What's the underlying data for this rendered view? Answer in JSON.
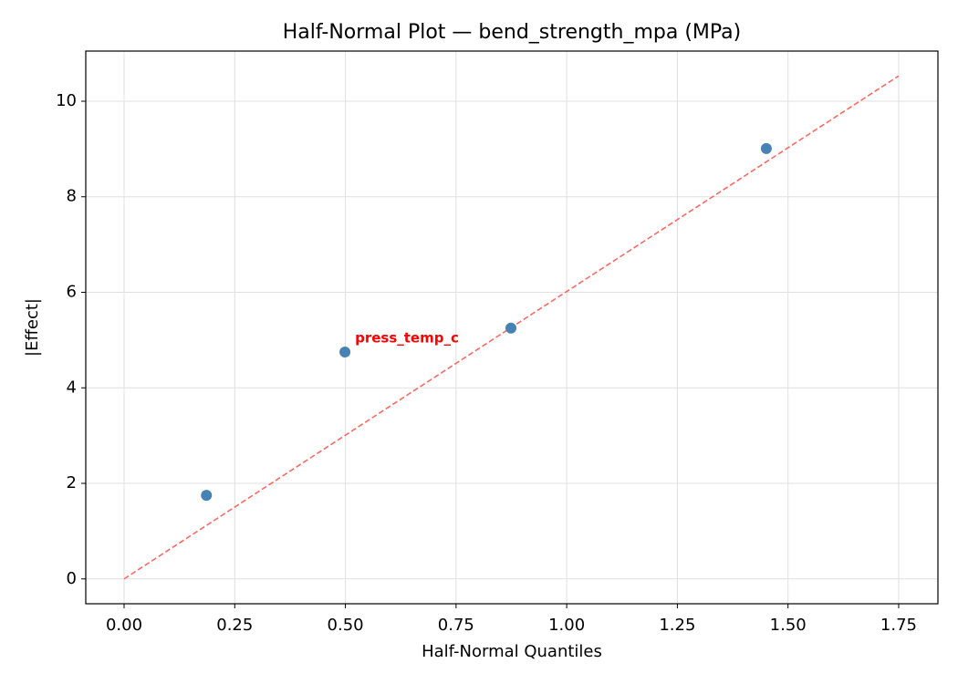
{
  "chart_data": {
    "type": "scatter",
    "title": "Half-Normal Plot — bend_strength_mpa (MPa)",
    "xlabel": "Half-Normal Quantiles",
    "ylabel": "|Effect|",
    "series": [
      {
        "color": "#4682b4",
        "x": [
          0.186,
          0.499,
          0.874,
          1.451
        ],
        "values": [
          1.75,
          4.75,
          5.25,
          9.01
        ]
      }
    ],
    "reference_line": {
      "x": [
        0,
        1.75
      ],
      "y": [
        0,
        10.53
      ],
      "color": "#f86a64",
      "dashed": true
    },
    "annotations": [
      {
        "text": "press_temp_c",
        "x": 0.499,
        "y": 4.75,
        "color": "#ff0000"
      }
    ],
    "xlim": [
      -0.0866,
      1.8387
    ],
    "ylim": [
      -0.52,
      11.05
    ],
    "xticks": [
      {
        "value": 0,
        "label": "0.00"
      },
      {
        "value": 0.25,
        "label": "0.25"
      },
      {
        "value": 0.5,
        "label": "0.50"
      },
      {
        "value": 0.75,
        "label": "0.75"
      },
      {
        "value": 1,
        "label": "1.00"
      },
      {
        "value": 1.25,
        "label": "1.25"
      },
      {
        "value": 1.5,
        "label": "1.50"
      },
      {
        "value": 1.75,
        "label": "1.75"
      }
    ],
    "yticks": [
      0,
      2,
      4,
      6,
      8,
      10
    ],
    "grid": true
  }
}
